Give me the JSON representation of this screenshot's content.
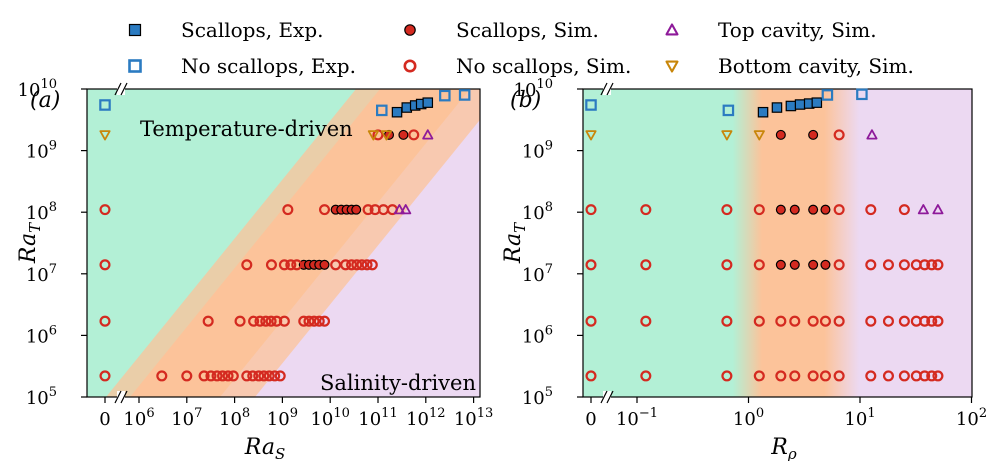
{
  "legend": [
    {
      "label": "Scallops, Exp.",
      "marker": "square",
      "filled": true,
      "color": "#2b7bc1"
    },
    {
      "label": "Scallops, Sim.",
      "marker": "circle",
      "filled": true,
      "color": "#d42a20"
    },
    {
      "label": "Top cavity, Sim.",
      "marker": "triangle-up",
      "filled": false,
      "color": "#8e1a9a"
    },
    {
      "label": "No scallops, Exp.",
      "marker": "square",
      "filled": false,
      "color": "#2b7bc1"
    },
    {
      "label": "No scallops, Sim.",
      "marker": "circle",
      "filled": false,
      "color": "#d42a20"
    },
    {
      "label": "Bottom cavity, Sim.",
      "marker": "triangle-down",
      "filled": false,
      "color": "#c8860a"
    }
  ],
  "colors": {
    "temperature_region": "#b3f0d6",
    "transition_region": "#fcc39a",
    "salinity_region": "#ecd9f2",
    "scallops_exp": "#2b7bc1",
    "scallops_sim": "#d42a20",
    "top_cavity": "#8e1a9a",
    "bottom_cavity": "#c8860a"
  },
  "chart_data": [
    {
      "type": "scatter",
      "panel_label": "(a)",
      "xlabel": "Ra",
      "xlabel_sub": "S",
      "ylabel": "Ra",
      "ylabel_sub": "T",
      "x_scale": "log-with-zero",
      "y_scale": "log",
      "x_ticks": [
        {
          "label": "0",
          "value": 0
        },
        {
          "label": "10",
          "exp": "6",
          "value": 1000000.0
        },
        {
          "label": "10",
          "exp": "7",
          "value": 10000000.0
        },
        {
          "label": "10",
          "exp": "8",
          "value": 100000000.0
        },
        {
          "label": "10",
          "exp": "9",
          "value": 1000000000.0
        },
        {
          "label": "10",
          "exp": "10",
          "value": 10000000000.0
        },
        {
          "label": "10",
          "exp": "11",
          "value": 100000000000.0
        },
        {
          "label": "10",
          "exp": "12",
          "value": 1000000000000.0
        },
        {
          "label": "10",
          "exp": "13",
          "value": 10000000000000.0
        }
      ],
      "y_ticks": [
        {
          "label": "10",
          "exp": "5",
          "value": 100000.0
        },
        {
          "label": "10",
          "exp": "6",
          "value": 1000000.0
        },
        {
          "label": "10",
          "exp": "7",
          "value": 10000000.0
        },
        {
          "label": "10",
          "exp": "8",
          "value": 100000000.0
        },
        {
          "label": "10",
          "exp": "9",
          "value": 1000000000.0
        },
        {
          "label": "10",
          "exp": "10",
          "value": 10000000000.0
        }
      ],
      "annotations": [
        "Temperature-driven",
        "Salinity-driven"
      ],
      "series": [
        {
          "name": "Scallops, Exp.",
          "points": [
            [
              250000000000.0,
              4200000000.0
            ],
            [
              400000000000.0,
              5000000000.0
            ],
            [
              600000000000.0,
              5400000000.0
            ],
            [
              800000000000.0,
              5700000000.0
            ],
            [
              1100000000000.0,
              6000000000.0
            ]
          ]
        },
        {
          "name": "No scallops, Exp.",
          "points": [
            [
              0,
              5500000000.0
            ],
            [
              120000000000.0,
              4500000000.0
            ],
            [
              2500000000000.0,
              7800000000.0
            ],
            [
              6500000000000.0,
              8000000000.0
            ]
          ]
        },
        {
          "name": "Scallops, Sim.",
          "points": [
            [
              2800000000.0,
              14000000.0
            ],
            [
              3600000000.0,
              14000000.0
            ],
            [
              4600000000.0,
              14000000.0
            ],
            [
              5900000000.0,
              14000000.0
            ],
            [
              7600000000.0,
              14000000.0
            ],
            [
              13000000000.0,
              110000000.0
            ],
            [
              17000000000.0,
              110000000.0
            ],
            [
              22000000000.0,
              110000000.0
            ],
            [
              28000000000.0,
              110000000.0
            ],
            [
              35000000000.0,
              110000000.0
            ],
            [
              170000000000.0,
              1800000000.0
            ],
            [
              340000000000.0,
              1800000000.0
            ]
          ]
        },
        {
          "name": "No scallops, Sim.",
          "points": [
            [
              0,
              220000.0
            ],
            [
              3000000.0,
              220000.0
            ],
            [
              10000000.0,
              220000.0
            ],
            [
              23000000.0,
              220000.0
            ],
            [
              32000000.0,
              220000.0
            ],
            [
              43000000.0,
              220000.0
            ],
            [
              56000000.0,
              220000.0
            ],
            [
              73000000.0,
              220000.0
            ],
            [
              94000000.0,
              220000.0
            ],
            [
              180000000.0,
              220000.0
            ],
            [
              240000000.0,
              220000.0
            ],
            [
              320000000.0,
              220000.0
            ],
            [
              410000000.0,
              220000.0
            ],
            [
              530000000.0,
              220000.0
            ],
            [
              690000000.0,
              220000.0
            ],
            [
              900000000.0,
              220000.0
            ],
            [
              0,
              1700000.0
            ],
            [
              28000000.0,
              1700000.0
            ],
            [
              130000000.0,
              1700000.0
            ],
            [
              250000000.0,
              1700000.0
            ],
            [
              340000000.0,
              1700000.0
            ],
            [
              450000000.0,
              1700000.0
            ],
            [
              580000000.0,
              1700000.0
            ],
            [
              760000000.0,
              1700000.0
            ],
            [
              1100000000.0,
              1700000.0
            ],
            [
              2800000000.0,
              1700000.0
            ],
            [
              3600000000.0,
              1700000.0
            ],
            [
              4600000000.0,
              1700000.0
            ],
            [
              5900000000.0,
              1700000.0
            ],
            [
              7600000000.0,
              1700000.0
            ],
            [
              0,
              14000000.0
            ],
            [
              180000000.0,
              14000000.0
            ],
            [
              590000000.0,
              14000000.0
            ],
            [
              1100000000.0,
              14000000.0
            ],
            [
              1500000000.0,
              14000000.0
            ],
            [
              2000000000.0,
              14000000.0
            ],
            [
              13000000000.0,
              14000000.0
            ],
            [
              21000000000.0,
              14000000.0
            ],
            [
              28000000000.0,
              14000000.0
            ],
            [
              36000000000.0,
              14000000.0
            ],
            [
              46000000000.0,
              14000000.0
            ],
            [
              59000000000.0,
              14000000.0
            ],
            [
              76000000000.0,
              14000000.0
            ],
            [
              0,
              110000000.0
            ],
            [
              1300000000.0,
              110000000.0
            ],
            [
              7600000000.0,
              110000000.0
            ],
            [
              62000000000.0,
              110000000.0
            ],
            [
              87000000000.0,
              110000000.0
            ],
            [
              130000000000.0,
              110000000.0
            ],
            [
              200000000000.0,
              110000000.0
            ],
            [
              100000000000.0,
              1800000000.0
            ],
            [
              560000000000.0,
              1800000000.0
            ]
          ]
        },
        {
          "name": "Top cavity, Sim.",
          "points": [
            [
              280000000000.0,
              110000000.0
            ],
            [
              380000000000.0,
              110000000.0
            ],
            [
              1100000000000.0,
              1800000000.0
            ]
          ]
        },
        {
          "name": "Bottom cavity, Sim.",
          "points": [
            [
              0,
              1800000000.0
            ],
            [
              80000000000.0,
              1800000000.0
            ],
            [
              150000000000.0,
              1800000000.0
            ]
          ]
        }
      ]
    },
    {
      "type": "scatter",
      "panel_label": "(b)",
      "xlabel": "R",
      "xlabel_sub": "ρ",
      "ylabel": "Ra",
      "ylabel_sub": "T",
      "x_scale": "log-with-zero",
      "y_scale": "log",
      "x_ticks": [
        {
          "label": "0",
          "value": 0
        },
        {
          "label": "10",
          "exp": "−1",
          "value": 0.1
        },
        {
          "label": "10",
          "exp": "0",
          "value": 1
        },
        {
          "label": "10",
          "exp": "1",
          "value": 10
        },
        {
          "label": "10",
          "exp": "2",
          "value": 100
        }
      ],
      "y_ticks": [
        {
          "label": "10",
          "exp": "5",
          "value": 100000.0
        },
        {
          "label": "10",
          "exp": "6",
          "value": 1000000.0
        },
        {
          "label": "10",
          "exp": "7",
          "value": 10000000.0
        },
        {
          "label": "10",
          "exp": "8",
          "value": 100000000.0
        },
        {
          "label": "10",
          "exp": "9",
          "value": 1000000000.0
        },
        {
          "label": "10",
          "exp": "10",
          "value": 10000000000.0
        }
      ],
      "series": [
        {
          "name": "Scallops, Exp.",
          "points": [
            [
              1.35,
              4200000000.0
            ],
            [
              1.8,
              5000000000.0
            ],
            [
              2.4,
              5300000000.0
            ],
            [
              2.9,
              5600000000.0
            ],
            [
              3.5,
              5800000000.0
            ],
            [
              4.1,
              6000000000.0
            ]
          ]
        },
        {
          "name": "No scallops, Exp.",
          "points": [
            [
              0,
              5500000000.0
            ],
            [
              0.66,
              4500000000.0
            ],
            [
              5.1,
              8000000000.0
            ],
            [
              10.4,
              8200000000.0
            ]
          ]
        },
        {
          "name": "Scallops, Sim.",
          "points": [
            [
              1.95,
              1800000000.0
            ],
            [
              3.8,
              1800000000.0
            ],
            [
              1.95,
              110000000.0
            ],
            [
              2.6,
              110000000.0
            ],
            [
              3.8,
              110000000.0
            ],
            [
              4.9,
              110000000.0
            ],
            [
              1.95,
              14000000.0
            ],
            [
              2.6,
              14000000.0
            ],
            [
              3.8,
              14000000.0
            ],
            [
              4.9,
              14000000.0
            ]
          ]
        },
        {
          "name": "No scallops, Sim.",
          "points": [
            [
              0,
              220000.0
            ],
            [
              0.12,
              220000.0
            ],
            [
              0.64,
              220000.0
            ],
            [
              1.25,
              220000.0
            ],
            [
              1.95,
              220000.0
            ],
            [
              2.6,
              220000.0
            ],
            [
              3.8,
              220000.0
            ],
            [
              4.9,
              220000.0
            ],
            [
              6.5,
              220000.0
            ],
            [
              12.5,
              220000.0
            ],
            [
              18,
              220000.0
            ],
            [
              25,
              220000.0
            ],
            [
              32,
              220000.0
            ],
            [
              38,
              220000.0
            ],
            [
              44,
              220000.0
            ],
            [
              50,
              220000.0
            ],
            [
              0,
              1700000.0
            ],
            [
              0.12,
              1700000.0
            ],
            [
              0.64,
              1700000.0
            ],
            [
              1.25,
              1700000.0
            ],
            [
              1.95,
              1700000.0
            ],
            [
              2.6,
              1700000.0
            ],
            [
              3.8,
              1700000.0
            ],
            [
              4.9,
              1700000.0
            ],
            [
              6.5,
              1700000.0
            ],
            [
              12.5,
              1700000.0
            ],
            [
              18,
              1700000.0
            ],
            [
              25,
              1700000.0
            ],
            [
              32,
              1700000.0
            ],
            [
              38,
              1700000.0
            ],
            [
              44,
              1700000.0
            ],
            [
              50,
              1700000.0
            ],
            [
              0,
              14000000.0
            ],
            [
              0.12,
              14000000.0
            ],
            [
              0.64,
              14000000.0
            ],
            [
              1.25,
              14000000.0
            ],
            [
              6.5,
              14000000.0
            ],
            [
              12.5,
              14000000.0
            ],
            [
              18,
              14000000.0
            ],
            [
              25,
              14000000.0
            ],
            [
              32,
              14000000.0
            ],
            [
              38,
              14000000.0
            ],
            [
              44,
              14000000.0
            ],
            [
              50,
              14000000.0
            ],
            [
              0,
              110000000.0
            ],
            [
              0.12,
              110000000.0
            ],
            [
              0.64,
              110000000.0
            ],
            [
              1.25,
              110000000.0
            ],
            [
              6.5,
              110000000.0
            ],
            [
              12.5,
              110000000.0
            ],
            [
              25,
              110000000.0
            ],
            [
              6.5,
              1800000000.0
            ]
          ]
        },
        {
          "name": "Top cavity, Sim.",
          "points": [
            [
              37,
              110000000.0
            ],
            [
              50,
              110000000.0
            ],
            [
              12.8,
              1800000000.0
            ]
          ]
        },
        {
          "name": "Bottom cavity, Sim.",
          "points": [
            [
              0,
              1800000000.0
            ],
            [
              0.64,
              1800000000.0
            ],
            [
              1.25,
              1800000000.0
            ]
          ]
        }
      ]
    }
  ]
}
